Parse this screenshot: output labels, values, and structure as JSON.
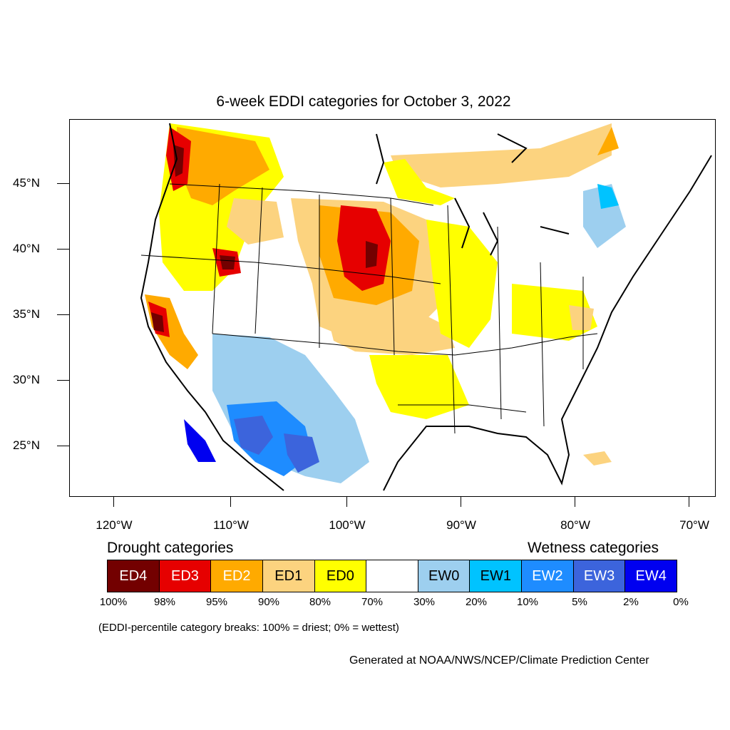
{
  "title": "6-week EDDI categories for October 3, 2022",
  "latitude_labels": [
    "45°N",
    "40°N",
    "35°N",
    "30°N",
    "25°N"
  ],
  "longitude_labels": [
    "120°W",
    "110°W",
    "100°W",
    "90°W",
    "80°W",
    "70°W"
  ],
  "legend": {
    "drought_heading": "Drought categories",
    "wetness_heading": "Wetness categories",
    "categories": [
      {
        "label": "ED4",
        "color": "#730000",
        "text_color": "#ffffff"
      },
      {
        "label": "ED3",
        "color": "#e60000",
        "text_color": "#ffffff"
      },
      {
        "label": "ED2",
        "color": "#ffaa00",
        "text_color": "#ffffff"
      },
      {
        "label": "ED1",
        "color": "#fcd37f",
        "text_color": "#000000"
      },
      {
        "label": "ED0",
        "color": "#ffff00",
        "text_color": "#000000"
      },
      {
        "label": "",
        "color": "#ffffff",
        "text_color": "#000000"
      },
      {
        "label": "EW0",
        "color": "#9dcfef",
        "text_color": "#000000"
      },
      {
        "label": "EW1",
        "color": "#00c3ff",
        "text_color": "#000000"
      },
      {
        "label": "EW2",
        "color": "#1e8cff",
        "text_color": "#ffffff"
      },
      {
        "label": "EW3",
        "color": "#3c64dc",
        "text_color": "#ffffff"
      },
      {
        "label": "EW4",
        "color": "#0000f0",
        "text_color": "#ffffff"
      }
    ],
    "breaks": [
      "100%",
      "98%",
      "95%",
      "90%",
      "80%",
      "70%",
      "30%",
      "20%",
      "10%",
      "5%",
      "2%",
      "0%"
    ]
  },
  "note": "(EDDI-percentile category breaks: 100% = driest; 0% = wettest)",
  "credit": "Generated at NOAA/NWS/NCEP/Climate Prediction Center"
}
